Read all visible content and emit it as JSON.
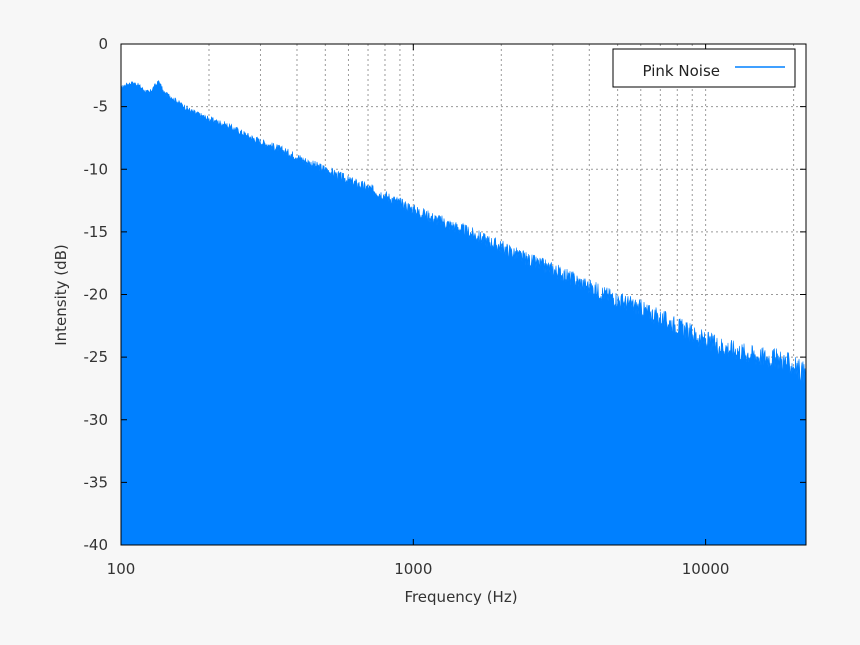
{
  "chart_data": {
    "type": "area",
    "title": "",
    "xlabel": "Frequency (Hz)",
    "ylabel": "Intensity (dB)",
    "xscale": "log",
    "xlim": [
      100,
      22050
    ],
    "ylim": [
      -40,
      0
    ],
    "x_ticks": [
      {
        "value": 100,
        "label": "100"
      },
      {
        "value": 1000,
        "label": "1000"
      },
      {
        "value": 10000,
        "label": "10000"
      }
    ],
    "y_ticks": [
      {
        "value": 0,
        "label": "0"
      },
      {
        "value": -5,
        "label": "-5"
      },
      {
        "value": -10,
        "label": "-10"
      },
      {
        "value": -15,
        "label": "-15"
      },
      {
        "value": -20,
        "label": "-20"
      },
      {
        "value": -25,
        "label": "-25"
      },
      {
        "value": -30,
        "label": "-30"
      },
      {
        "value": -35,
        "label": "-35"
      },
      {
        "value": -40,
        "label": "-40"
      }
    ],
    "grid": true,
    "grid_style": "dotted",
    "legend_position": "top-right",
    "series": [
      {
        "name": "Pink Noise",
        "color": "#0080ff",
        "x": [
          100,
          105,
          110,
          115,
          120,
          125,
          130,
          135,
          140,
          150,
          160,
          175,
          200,
          225,
          250,
          275,
          300,
          350,
          400,
          450,
          500,
          600,
          700,
          800,
          900,
          1000,
          1200,
          1500,
          2000,
          2500,
          3000,
          4000,
          5000,
          6000,
          7000,
          8000,
          10000,
          12000,
          15000,
          18000,
          20000,
          22050
        ],
        "y": [
          -3.5,
          -3.2,
          -3.1,
          -3.3,
          -3.7,
          -3.9,
          -3.4,
          -3.0,
          -3.9,
          -4.3,
          -4.8,
          -5.4,
          -6.0,
          -6.4,
          -6.9,
          -7.4,
          -7.8,
          -8.4,
          -9.0,
          -9.6,
          -10.0,
          -10.9,
          -11.5,
          -12.1,
          -12.7,
          -13.2,
          -14.0,
          -14.9,
          -16.2,
          -17.3,
          -18.0,
          -19.4,
          -20.4,
          -21.1,
          -21.9,
          -22.5,
          -23.7,
          -24.3,
          -24.9,
          -25.2,
          -25.7,
          -26.4
        ]
      }
    ]
  }
}
